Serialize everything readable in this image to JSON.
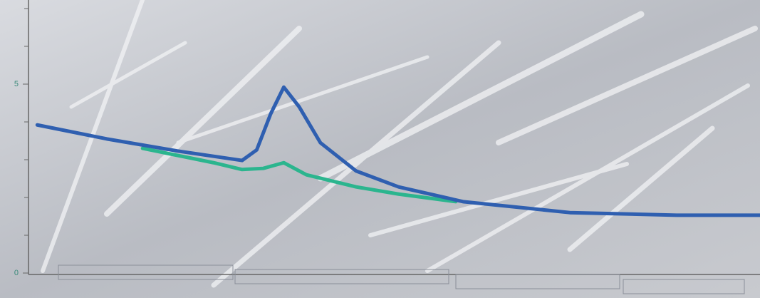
{
  "chart_data": {
    "type": "line",
    "ylim": [
      0,
      7.2
    ],
    "xlim": [
      0,
      100
    ],
    "yticks": [
      0,
      5
    ],
    "minor_yticks": [
      1,
      2,
      3,
      4,
      6,
      7
    ],
    "series": [
      {
        "color": "#2f5fb0",
        "x": [
          1.2,
          10.7,
          20.4,
          29.2,
          31.2,
          33.1,
          34.9,
          37,
          39.9,
          44.8,
          50.6,
          59.4,
          74,
          88.6,
          100
        ],
        "values": [
          3.92,
          3.55,
          3.23,
          2.98,
          3.26,
          4.21,
          4.92,
          4.4,
          3.45,
          2.7,
          2.28,
          1.89,
          1.6,
          1.53,
          1.53
        ]
      },
      {
        "color": "#2bb58e",
        "x": [
          15.6,
          25.3,
          29.2,
          32.1,
          34.9,
          38,
          44.8,
          50.6,
          58.4
        ],
        "values": [
          3.3,
          2.92,
          2.74,
          2.77,
          2.92,
          2.6,
          2.28,
          2.09,
          1.89
        ]
      }
    ]
  }
}
